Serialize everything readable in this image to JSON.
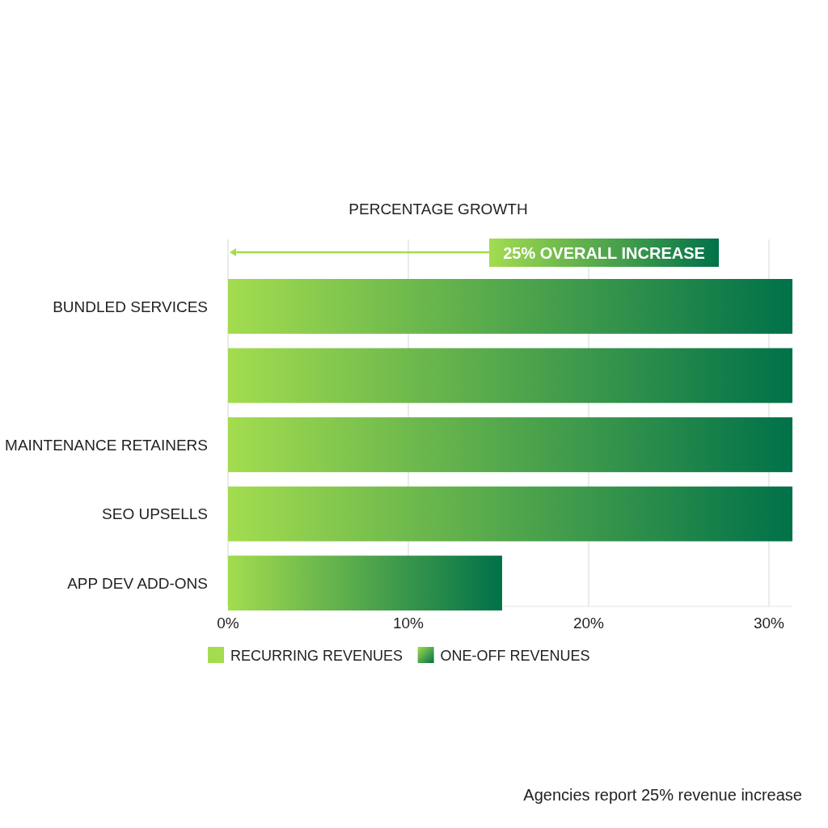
{
  "chart_data": {
    "type": "bar",
    "orientation": "horizontal",
    "title": "PERCENTAGE GROWTH",
    "categories": [
      "BUNDLED SERVICES",
      null,
      "MAINTENANCE RETAINERS",
      "SEO UPSELLS",
      "APP DEV ADD-ONS"
    ],
    "series": [
      {
        "name": "RECURRING REVENUES",
        "color": "#a3dc4f",
        "values": [
          31.3,
          31.3,
          31.3,
          31.3,
          15.2
        ]
      },
      {
        "name": "ONE-OFF REVENUES",
        "color": "#007149",
        "values": [
          null,
          null,
          null,
          null,
          null
        ]
      }
    ],
    "xlim": [
      0,
      31.3
    ],
    "xticks": [
      {
        "value": 0,
        "label": "0%"
      },
      {
        "value": 10,
        "label": "10%"
      },
      {
        "value": 20,
        "label": "20%"
      },
      {
        "value": 30,
        "label": "30%"
      }
    ],
    "grid": "x",
    "legend": "bottom",
    "annotations": [
      "25% OVERALL INCREASE",
      "Agencies report 25% revenue increase"
    ]
  }
}
